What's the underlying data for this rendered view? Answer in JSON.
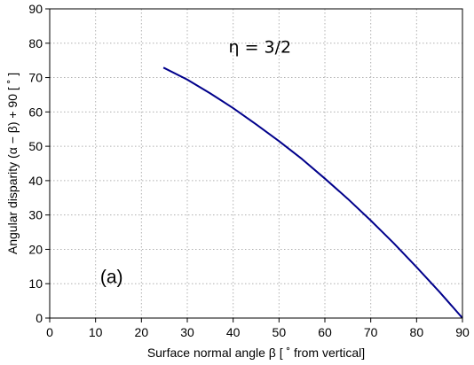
{
  "chart_data": {
    "type": "line",
    "xlabel": "Surface normal angle  β  [ ˚ from vertical]",
    "ylabel": "Angular disparity  (α − β) + 90  [ ˚ ]",
    "xlim": [
      0,
      90
    ],
    "ylim": [
      0,
      90
    ],
    "xticks": [
      "0",
      "10",
      "20",
      "30",
      "40",
      "50",
      "60",
      "70",
      "80",
      "90"
    ],
    "yticks": [
      "0",
      "10",
      "20",
      "30",
      "40",
      "50",
      "60",
      "70",
      "80",
      "90"
    ],
    "grid": true,
    "annotations": [
      {
        "text": "η = 3/2",
        "x": 39,
        "y": 79
      },
      {
        "text": "(a)",
        "x": 11,
        "y": 12
      }
    ],
    "series": [
      {
        "color": "#00008b",
        "x": [
          24.8,
          30,
          35,
          40,
          45,
          50,
          55,
          60,
          65,
          70,
          75,
          80,
          85,
          90
        ],
        "y": [
          72.9,
          69.4,
          65.4,
          61.1,
          56.4,
          51.5,
          46.3,
          40.6,
          34.7,
          28.4,
          21.8,
          14.8,
          7.6,
          0
        ]
      }
    ]
  }
}
